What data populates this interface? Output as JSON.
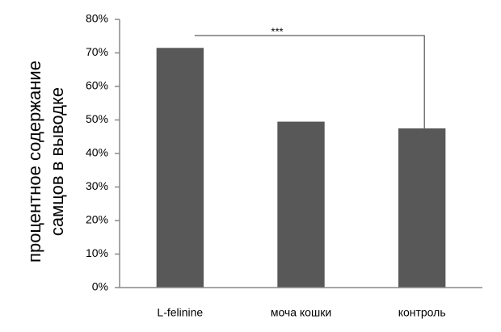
{
  "chart_data": {
    "type": "bar",
    "ylabel": [
      "процентное содержание",
      "самцов в выводке"
    ],
    "categories": [
      "L-felinine",
      "моча кошки",
      "контроль"
    ],
    "values": [
      71.5,
      49.5,
      47.5
    ],
    "color": "#585858",
    "ylim": [
      0,
      80
    ],
    "yticks": [
      {
        "value": 0,
        "label": "0%"
      },
      {
        "value": 10,
        "label": "10%"
      },
      {
        "value": 20,
        "label": "20%"
      },
      {
        "value": 30,
        "label": "30%"
      },
      {
        "value": 40,
        "label": "40%"
      },
      {
        "value": 50,
        "label": "50%"
      },
      {
        "value": 60,
        "label": "60%"
      },
      {
        "value": 70,
        "label": "70%"
      },
      {
        "value": 80,
        "label": "80%"
      }
    ],
    "grid": false,
    "annotation": "***"
  }
}
